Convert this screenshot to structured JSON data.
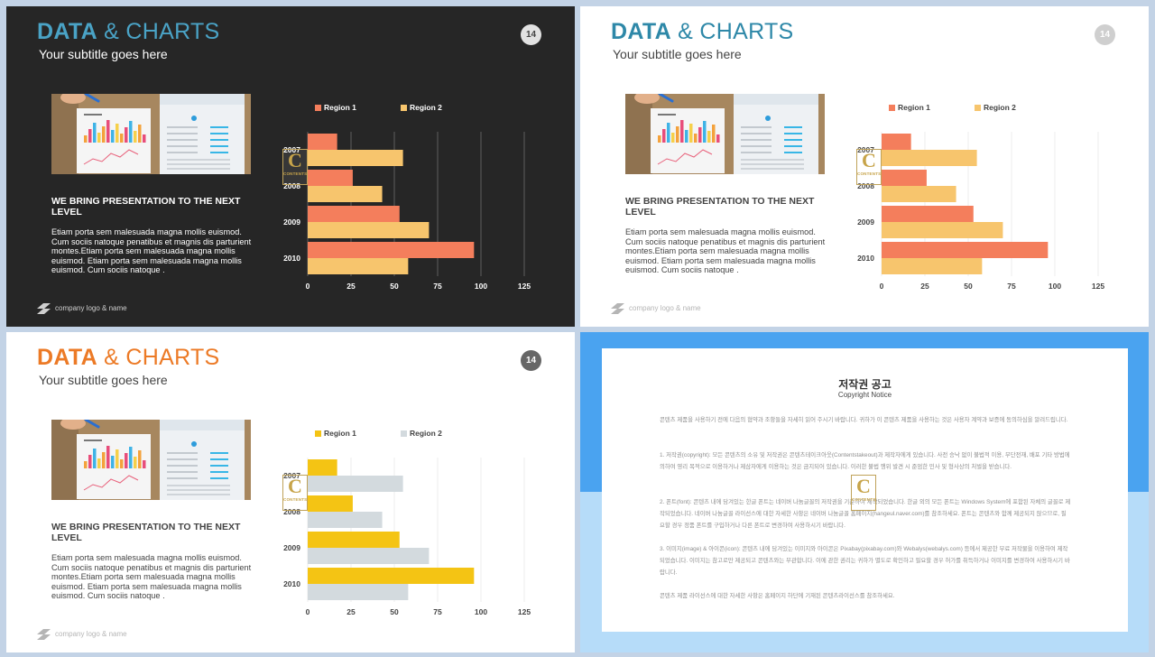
{
  "slides": [
    {
      "theme": "dark",
      "title_strong": "DATA",
      "title_rest": " & CHARTS",
      "subtitle": "Your subtitle goes here",
      "page_number": "14",
      "heading": "WE BRING PRESENTATION TO THE NEXT LEVEL",
      "body": "Etiam porta sem malesuada magna mollis euismod. Cum sociis natoque penatibus et magnis dis parturient montes.Etiam porta sem malesuada magna mollis euismod. Etiam porta sem malesuada magna mollis euismod. Cum sociis natoque .",
      "logo_text": "company logo & name",
      "colors": {
        "bg": "#262626",
        "title": "#4aa3c6",
        "text": "#ffffff",
        "region1": "#f47e5c",
        "region2": "#f7c56d",
        "grid": "#5e5e5e",
        "pgnum_bg": "#e2e2e2",
        "pgnum_fg": "#444444",
        "logo": "#cfcfcf"
      }
    },
    {
      "theme": "light",
      "title_strong": "DATA",
      "title_rest": " & CHARTS",
      "subtitle": "Your subtitle goes here",
      "page_number": "14",
      "heading": "WE BRING PRESENTATION TO THE NEXT LEVEL",
      "body": "Etiam porta sem malesuada magna mollis euismod. Cum sociis natoque penatibus et magnis dis parturient montes.Etiam porta sem malesuada magna mollis euismod. Etiam porta sem malesuada magna mollis euismod. Cum sociis natoque .",
      "logo_text": "company logo & name",
      "colors": {
        "bg": "#ffffff",
        "title": "#2e88a8",
        "text": "#444444",
        "region1": "#f47e5c",
        "region2": "#f7c56d",
        "grid": "#eeeeee",
        "pgnum_bg": "#cfcfcf",
        "pgnum_fg": "#ffffff",
        "logo": "#b5b5b5"
      }
    },
    {
      "theme": "light-orange",
      "title_strong": "DATA",
      "title_rest": " & CHARTS",
      "subtitle": "Your subtitle goes here",
      "page_number": "14",
      "heading": "WE BRING PRESENTATION TO THE NEXT LEVEL",
      "body": "Etiam porta sem malesuada magna mollis euismod. Cum sociis natoque penatibus et magnis dis parturient montes.Etiam porta sem malesuada magna mollis euismod. Etiam porta sem malesuada magna mollis euismod. Cum sociis natoque .",
      "logo_text": "company logo & name",
      "colors": {
        "bg": "#ffffff",
        "title": "#ec7a26",
        "text": "#444444",
        "region1": "#f4c414",
        "region2": "#d3dade",
        "grid": "#eeeeee",
        "pgnum_bg": "#666666",
        "pgnum_fg": "#ffffff",
        "logo": "#b5b5b5"
      }
    }
  ],
  "stamp": {
    "letter": "C",
    "word": "CONTENTS"
  },
  "chart_data": [
    {
      "type": "bar",
      "orientation": "horizontal",
      "categories": [
        "2007",
        "2008",
        "2009",
        "2010"
      ],
      "series": [
        {
          "name": "Region 1",
          "values": [
            17,
            26,
            53,
            96
          ]
        },
        {
          "name": "Region 2",
          "values": [
            55,
            43,
            70,
            58
          ]
        }
      ],
      "xticks": [
        "0",
        "25",
        "50",
        "75",
        "100",
        "125"
      ],
      "xlim": [
        0,
        125
      ],
      "grid": "vertical",
      "legend": "top"
    },
    {
      "type": "bar",
      "orientation": "horizontal",
      "categories": [
        "2007",
        "2008",
        "2009",
        "2010"
      ],
      "series": [
        {
          "name": "Region 1",
          "values": [
            17,
            26,
            53,
            96
          ]
        },
        {
          "name": "Region 2",
          "values": [
            55,
            43,
            70,
            58
          ]
        }
      ],
      "xticks": [
        "0",
        "25",
        "50",
        "75",
        "100",
        "125"
      ],
      "xlim": [
        0,
        125
      ],
      "grid": "vertical",
      "legend": "top"
    },
    {
      "type": "bar",
      "orientation": "horizontal",
      "categories": [
        "2007",
        "2008",
        "2009",
        "2010"
      ],
      "series": [
        {
          "name": "Region 1",
          "values": [
            17,
            26,
            53,
            96
          ]
        },
        {
          "name": "Region 2",
          "values": [
            55,
            43,
            70,
            58
          ]
        }
      ],
      "xticks": [
        "0",
        "25",
        "50",
        "75",
        "100",
        "125"
      ],
      "xlim": [
        0,
        125
      ],
      "grid": "vertical",
      "legend": "top"
    }
  ],
  "notice": {
    "title": "저작권 공고",
    "subtitle": "Copyright Notice",
    "paragraphs": [
      "콘텐츠 제품을 사용하기 전에 다음의 협약과 조항들을 자세히 읽어 주시기 바랍니다. 귀하가 이 콘텐츠 제품을 사용하는 것은 사용자 계약과 보증에 동의하심을 알려드립니다.",
      "1. 저작권(copyright): 모든 콘텐츠의 소유 및 저작권은 콘텐츠테이크아웃(Contentstakeout)과 제작자에게 있습니다. 사전 승낙 없이 불법적 이용, 무단전재, 배포 기타 방법에 의하여 영리 목적으로 이용하거나 제삼자에게 이용하는 것은 금지되어 있습니다. 이러한 불법 행위 발견 시 준엄한 민사 및 형사상의 처벌을 받습니다.",
      "2. 폰트(font): 콘텐츠 내에 담겨있는 한글 폰트는 네이버 나눔글꼴의 저작권을 기준하여 제작되었습니다. 한글 외의 모든 폰트는 Windows System에 포함된 자체의 글꼴로 제작되었습니다. 네이버 나눔글꼴 라이선스에 대한 자세한 사항은 네이버 나눔글꼴 홈페이지(hangeul.naver.com)를 참조하세요. 폰트는 콘텐츠와 함께 제공되지 않으므로, 필요할 경우 정품 폰트를 구입하거나 다른 폰트로 변경하여 사용하시기 바랍니다.",
      "3. 이미지(image) & 아이콘(icon): 콘텐츠 내에 담겨있는 이미지와 아이콘은 Pixabay(pixabay.com)와 Webalys(webalys.com) 등에서 제공한 무료 저작물을 이용하여 제작되었습니다. 이미지는 참고로만 제공되고 콘텐츠와는 무관합니다. 이에 관한 권리는 귀하가 별도로 확인하고 필요할 경우 허가를 취득하거나 이미지를 변경하여 사용하시기 바랍니다.",
      "콘텐츠 제품 라이선스에 대한 자세한 사항은 홈페이지 하단에 기재된 콘텐츠라이선스를 참조하세요."
    ]
  }
}
